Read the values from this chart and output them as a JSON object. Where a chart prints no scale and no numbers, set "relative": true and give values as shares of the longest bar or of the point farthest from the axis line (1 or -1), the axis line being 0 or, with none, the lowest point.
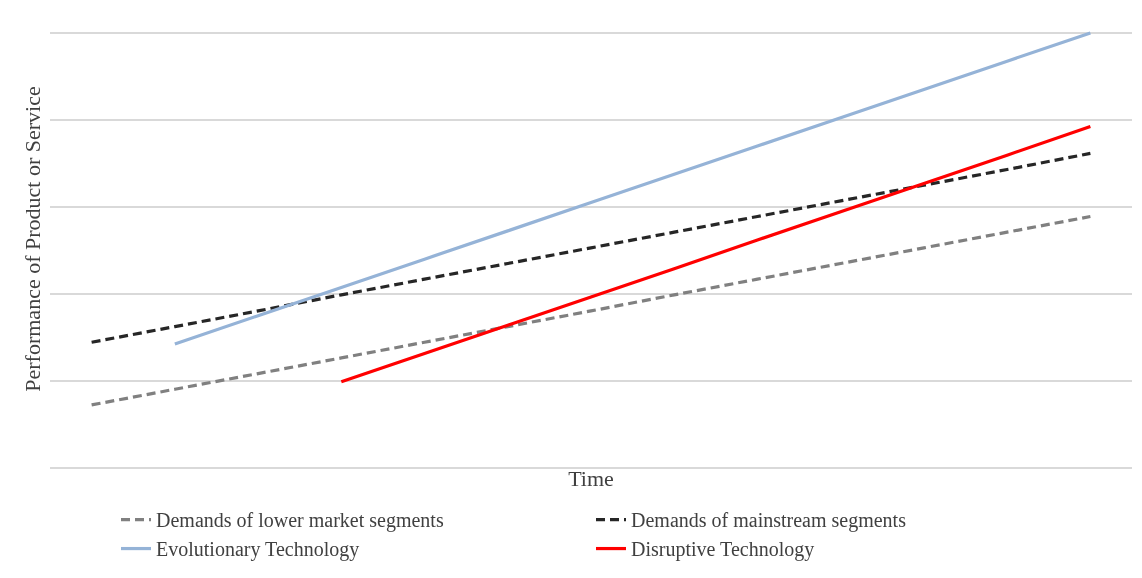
{
  "chart_data": {
    "type": "line",
    "relative": true,
    "xlabel": "Time",
    "ylabel": "Performance of Product or Service",
    "grid": "y",
    "legend": "bottom",
    "marker": "none",
    "categories": [
      null,
      null,
      null,
      null,
      null,
      null,
      null,
      null,
      null,
      null,
      null,
      null,
      null
    ],
    "series": [
      {
        "name": "Demands of lower market segments",
        "color": "#808080",
        "line_style": "dashed",
        "values": [
          0.145,
          0.181,
          0.217,
          0.253,
          0.289,
          0.325,
          0.361,
          0.398,
          0.434,
          0.47,
          0.506,
          0.542,
          0.578
        ]
      },
      {
        "name": "Demands of mainstream segments",
        "color": "#262626",
        "line_style": "dashed",
        "values": [
          0.289,
          0.325,
          0.361,
          0.398,
          0.434,
          0.47,
          0.506,
          0.542,
          0.578,
          0.614,
          0.65,
          0.686,
          0.723
        ]
      },
      {
        "name": "Evolutionary Technology",
        "color": "#95b3d7",
        "line_style": "solid",
        "values": [
          null,
          0.285,
          0.35,
          0.415,
          0.48,
          0.545,
          0.61,
          0.675,
          0.74,
          0.805,
          0.87,
          0.935,
          1
        ]
      },
      {
        "name": "Disruptive Technology",
        "color": "#ff0000",
        "line_style": "solid",
        "values": [
          null,
          null,
          null,
          0.198,
          0.263,
          0.328,
          0.393,
          0.458,
          0.524,
          0.589,
          0.654,
          0.719,
          0.785
        ]
      }
    ]
  }
}
